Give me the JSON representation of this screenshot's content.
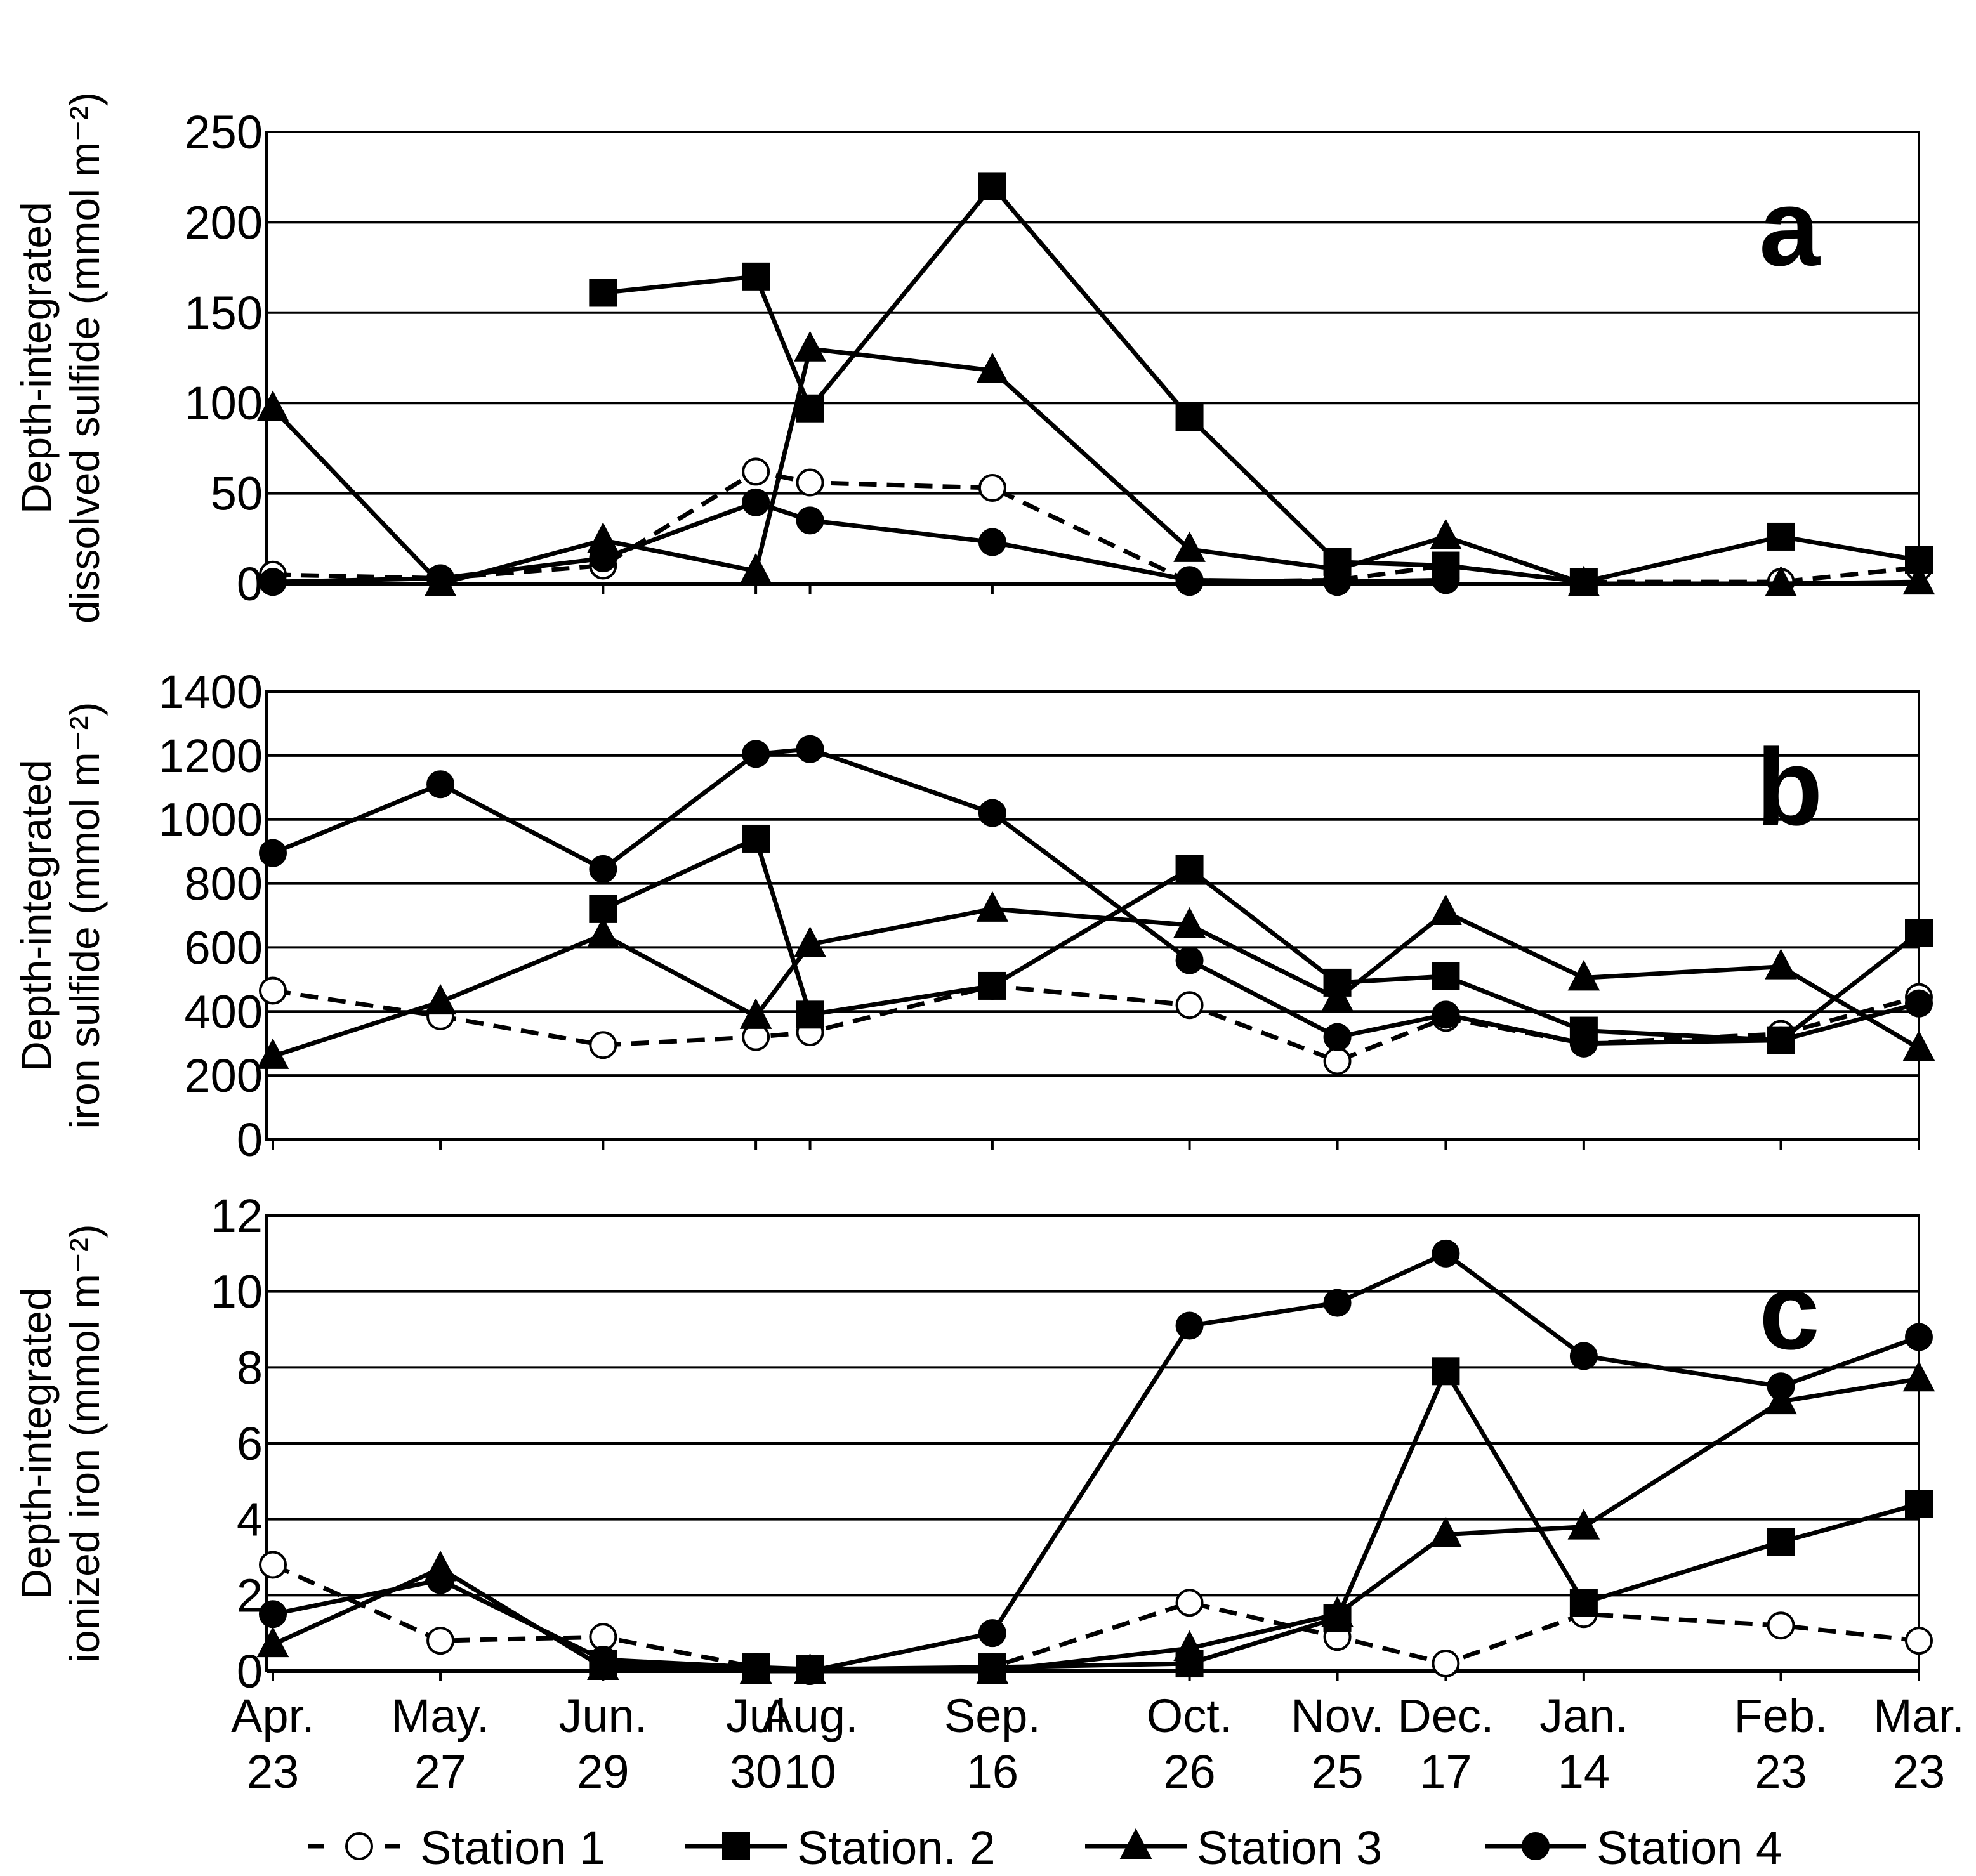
{
  "chart_data": [
    {
      "type": "line",
      "annotation": "a",
      "ylabel": [
        "Depth-integrated",
        "dissolved sulfide (mmol m⁻²)"
      ],
      "categories": [
        "Apr. 23",
        "May. 27",
        "Jun. 29",
        "Jul 30",
        "Aug. 10",
        "Sep. 16",
        "Oct. 26",
        "Nov. 25",
        "Dec. 17",
        "Jan. 14",
        "Feb. 23",
        "Mar. 23"
      ],
      "ylim": [
        0,
        250
      ],
      "yticks": [
        0,
        50,
        100,
        150,
        200,
        250
      ],
      "grid": true,
      "series": [
        {
          "name": "Station 1",
          "color": "#000000",
          "marker": "circle-open",
          "dashed": true,
          "values": [
            5,
            3,
            10,
            62,
            56,
            53,
            1,
            2,
            10,
            1,
            1,
            9
          ]
        },
        {
          "name": "Station. 2",
          "color": "#000000",
          "marker": "square",
          "dashed": false,
          "values": [
            null,
            null,
            161,
            170,
            97,
            220,
            92,
            12,
            10,
            1,
            26,
            13
          ]
        },
        {
          "name": "Station 3",
          "color": "#000000",
          "marker": "triangle",
          "dashed": false,
          "values": [
            97,
            0,
            24,
            7,
            130,
            118,
            19,
            8,
            26,
            0,
            0,
            1
          ]
        },
        {
          "name": "Station 4",
          "color": "#000000",
          "marker": "circle",
          "dashed": false,
          "values": [
            1,
            3,
            14,
            45,
            35,
            23,
            2,
            1,
            2,
            null,
            null,
            null
          ]
        }
      ]
    },
    {
      "type": "line",
      "annotation": "b",
      "ylabel": [
        "Depth-integrated",
        "iron sulfide (mmol m⁻²)"
      ],
      "categories": [
        "Apr. 23",
        "May. 27",
        "Jun. 29",
        "Jul 30",
        "Aug. 10",
        "Sep. 16",
        "Oct. 26",
        "Nov. 25",
        "Dec. 17",
        "Jan. 14",
        "Feb. 23",
        "Mar. 23"
      ],
      "ylim": [
        0,
        1400
      ],
      "yticks": [
        0,
        200,
        400,
        600,
        800,
        1000,
        1200,
        1400
      ],
      "grid": true,
      "series": [
        {
          "name": "Station 1",
          "color": "#000000",
          "marker": "circle-open",
          "dashed": true,
          "values": [
            465,
            385,
            295,
            320,
            335,
            480,
            420,
            245,
            380,
            300,
            330,
            445
          ]
        },
        {
          "name": "Station. 2",
          "color": "#000000",
          "marker": "square",
          "dashed": false,
          "values": [
            null,
            null,
            720,
            940,
            390,
            480,
            845,
            490,
            510,
            340,
            310,
            645
          ]
        },
        {
          "name": "Station 3",
          "color": "#000000",
          "marker": "triangle",
          "dashed": false,
          "values": [
            260,
            430,
            640,
            385,
            610,
            720,
            670,
            440,
            710,
            505,
            540,
            285
          ]
        },
        {
          "name": "Station 4",
          "color": "#000000",
          "marker": "circle",
          "dashed": false,
          "values": [
            895,
            1110,
            845,
            1205,
            1220,
            1020,
            560,
            320,
            390,
            300,
            310,
            425
          ]
        }
      ]
    },
    {
      "type": "line",
      "annotation": "c",
      "ylabel": [
        "Depth-integrated",
        "ionized iron (mmol m⁻²)"
      ],
      "categories": [
        "Apr. 23",
        "May. 27",
        "Jun. 29",
        "Jul 30",
        "Aug. 10",
        "Sep. 16",
        "Oct. 26",
        "Nov. 25",
        "Dec. 17",
        "Jan. 14",
        "Feb. 23",
        "Mar. 23"
      ],
      "ylim": [
        0,
        12
      ],
      "yticks": [
        0,
        2,
        4,
        6,
        8,
        10,
        12
      ],
      "grid": true,
      "series": [
        {
          "name": "Station 1",
          "color": "#000000",
          "marker": "circle-open",
          "dashed": true,
          "values": [
            2.8,
            0.8,
            0.9,
            0.1,
            0,
            0.1,
            1.8,
            0.9,
            0.2,
            1.5,
            1.2,
            0.8
          ]
        },
        {
          "name": "Station. 2",
          "color": "#000000",
          "marker": "square",
          "dashed": false,
          "values": [
            null,
            null,
            0.2,
            0.1,
            0.05,
            0.1,
            0.2,
            1.4,
            7.9,
            1.8,
            3.4,
            4.4
          ]
        },
        {
          "name": "Station 3",
          "color": "#000000",
          "marker": "triangle",
          "dashed": false,
          "values": [
            0.7,
            2.7,
            0.1,
            0,
            0,
            0,
            0.6,
            1.5,
            3.6,
            3.8,
            7.1,
            7.7
          ]
        },
        {
          "name": "Station 4",
          "color": "#000000",
          "marker": "circle",
          "dashed": false,
          "values": [
            1.5,
            2.4,
            0.3,
            0.1,
            0,
            1.0,
            9.1,
            9.7,
            11.0,
            8.3,
            7.5,
            8.8
          ]
        }
      ]
    }
  ]
}
